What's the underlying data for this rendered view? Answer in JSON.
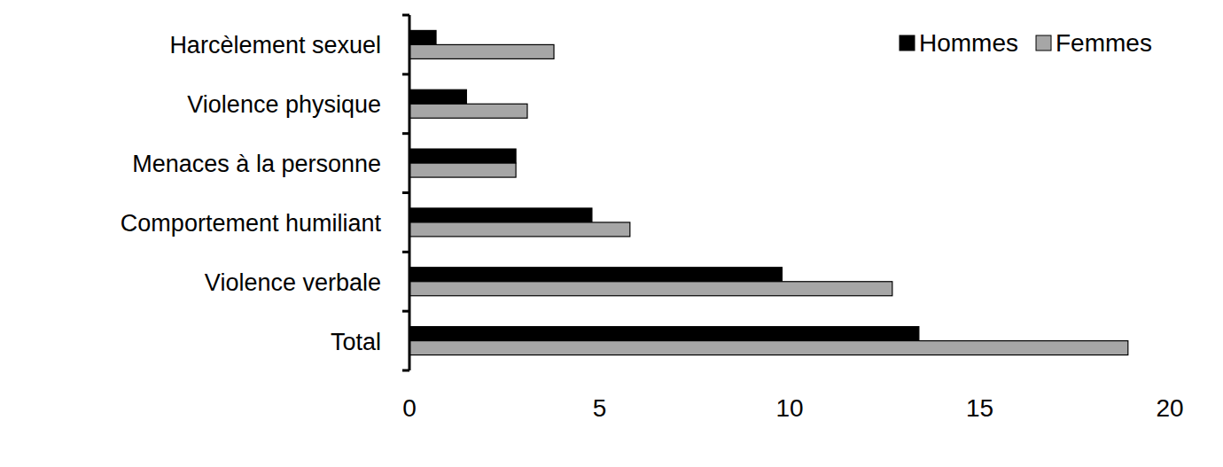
{
  "chart_data": {
    "type": "bar",
    "orientation": "horizontal",
    "categories": [
      "Harcèlement sexuel",
      "Violence physique",
      "Menaces à la personne",
      "Comportement humiliant",
      "Violence verbale",
      "Total"
    ],
    "series": [
      {
        "name": "Hommes",
        "color": "#000000",
        "values": [
          0.7,
          1.5,
          2.8,
          4.8,
          9.8,
          13.4
        ]
      },
      {
        "name": "Femmes",
        "color": "#a6a6a6",
        "values": [
          3.8,
          3.1,
          2.8,
          5.8,
          12.7,
          18.9
        ]
      }
    ],
    "xlim": [
      0,
      20
    ],
    "xticks": [
      0,
      5,
      10,
      15,
      20
    ],
    "grid": false,
    "legend": "upper right"
  }
}
